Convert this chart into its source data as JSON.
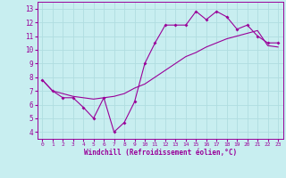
{
  "xlabel": "Windchill (Refroidissement éolien,°C)",
  "xlim": [
    -0.5,
    23.5
  ],
  "ylim": [
    3.5,
    13.5
  ],
  "xticks": [
    0,
    1,
    2,
    3,
    4,
    5,
    6,
    7,
    8,
    9,
    10,
    11,
    12,
    13,
    14,
    15,
    16,
    17,
    18,
    19,
    20,
    21,
    22,
    23
  ],
  "yticks": [
    4,
    5,
    6,
    7,
    8,
    9,
    10,
    11,
    12,
    13
  ],
  "bg_color": "#c8eef0",
  "line_color": "#990099",
  "grid_color": "#b0dde0",
  "line1_x": [
    0,
    1,
    2,
    3,
    4,
    5,
    6,
    7,
    8,
    9,
    10,
    11,
    12,
    13,
    14,
    15,
    16,
    17,
    18,
    19,
    20,
    21,
    22,
    23
  ],
  "line1_y": [
    7.8,
    7.0,
    6.5,
    6.5,
    5.8,
    5.0,
    6.5,
    4.0,
    4.7,
    6.2,
    9.0,
    10.5,
    11.8,
    11.8,
    11.8,
    12.8,
    12.2,
    12.8,
    12.4,
    11.5,
    11.8,
    11.0,
    10.5,
    10.5
  ],
  "line2_x": [
    0,
    1,
    2,
    3,
    4,
    5,
    6,
    7,
    8,
    9,
    10,
    11,
    12,
    13,
    14,
    15,
    16,
    17,
    18,
    19,
    20,
    21,
    22,
    23
  ],
  "line2_y": [
    7.8,
    7.0,
    6.8,
    6.6,
    6.5,
    6.4,
    6.5,
    6.6,
    6.8,
    7.2,
    7.5,
    8.0,
    8.5,
    9.0,
    9.5,
    9.8,
    10.2,
    10.5,
    10.8,
    11.0,
    11.2,
    11.4,
    10.3,
    10.2
  ]
}
